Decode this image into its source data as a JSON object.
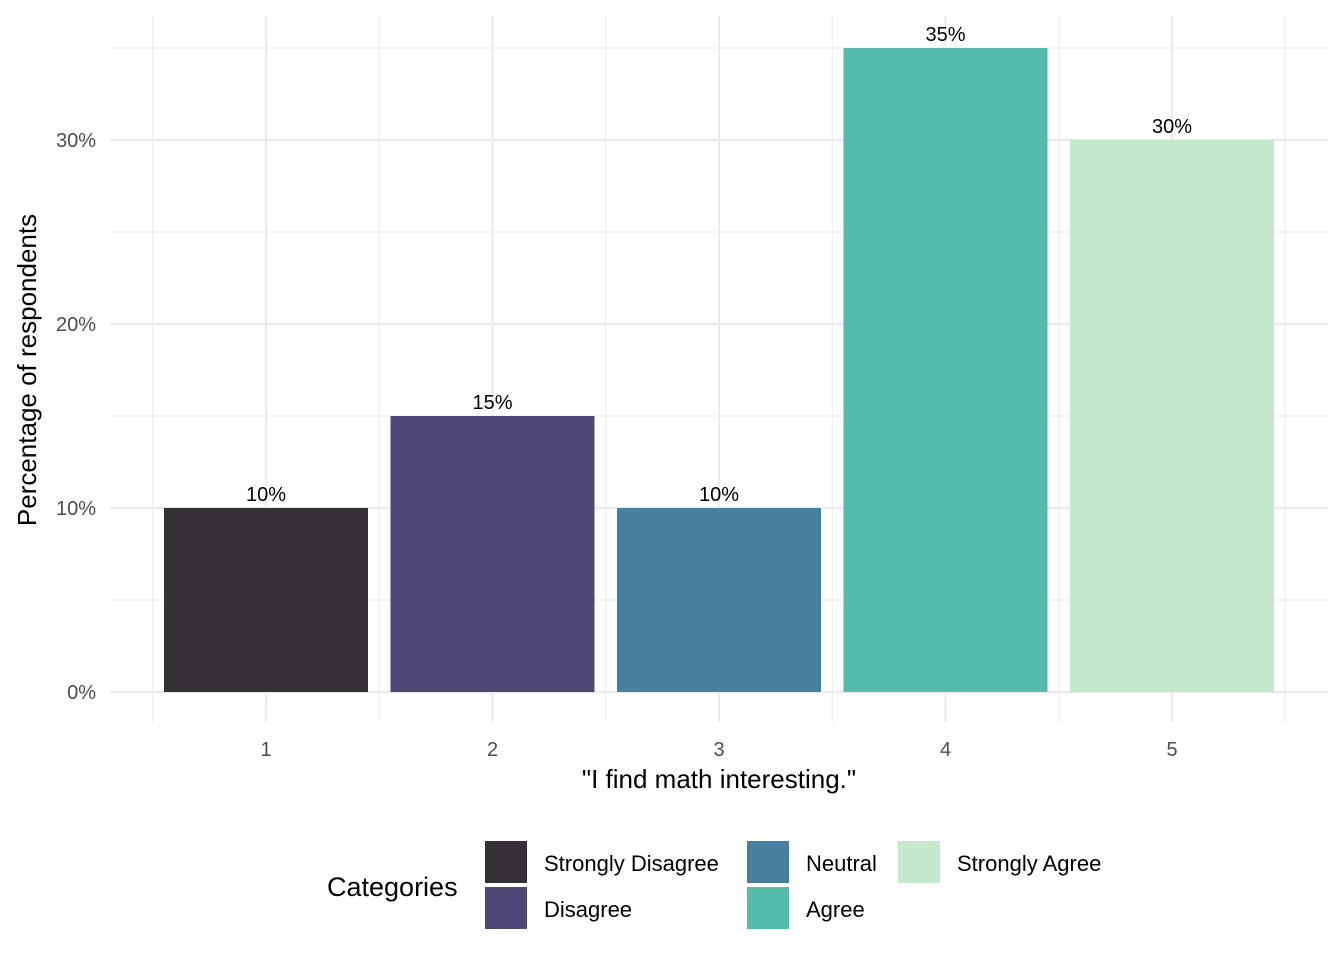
{
  "chart_data": {
    "type": "bar",
    "categories": [
      "1",
      "2",
      "3",
      "4",
      "5"
    ],
    "values": [
      10,
      15,
      10,
      35,
      30
    ],
    "value_labels": [
      "10%",
      "15%",
      "10%",
      "35%",
      "30%"
    ],
    "colors": [
      "#352f36",
      "#4e4877",
      "#477fa0",
      "#55bbab",
      "#c4e9cf"
    ],
    "title": "",
    "xlabel": "\"I find math interesting.\"",
    "ylabel": "Percentage of respondents",
    "ylim": [
      0,
      36.8
    ],
    "yticks": [
      0,
      10,
      20,
      30
    ],
    "ytick_labels": [
      "0%",
      "10%",
      "20%",
      "30%"
    ],
    "grid": true,
    "legend": {
      "title": "Categories",
      "position": "bottom",
      "entries": [
        {
          "label": "Strongly Disagree",
          "color": "#352f36"
        },
        {
          "label": "Disagree",
          "color": "#4e4877"
        },
        {
          "label": "Neutral",
          "color": "#477fa0"
        },
        {
          "label": "Agree",
          "color": "#55bbab"
        },
        {
          "label": "Strongly Agree",
          "color": "#c4e9cf"
        }
      ]
    }
  }
}
